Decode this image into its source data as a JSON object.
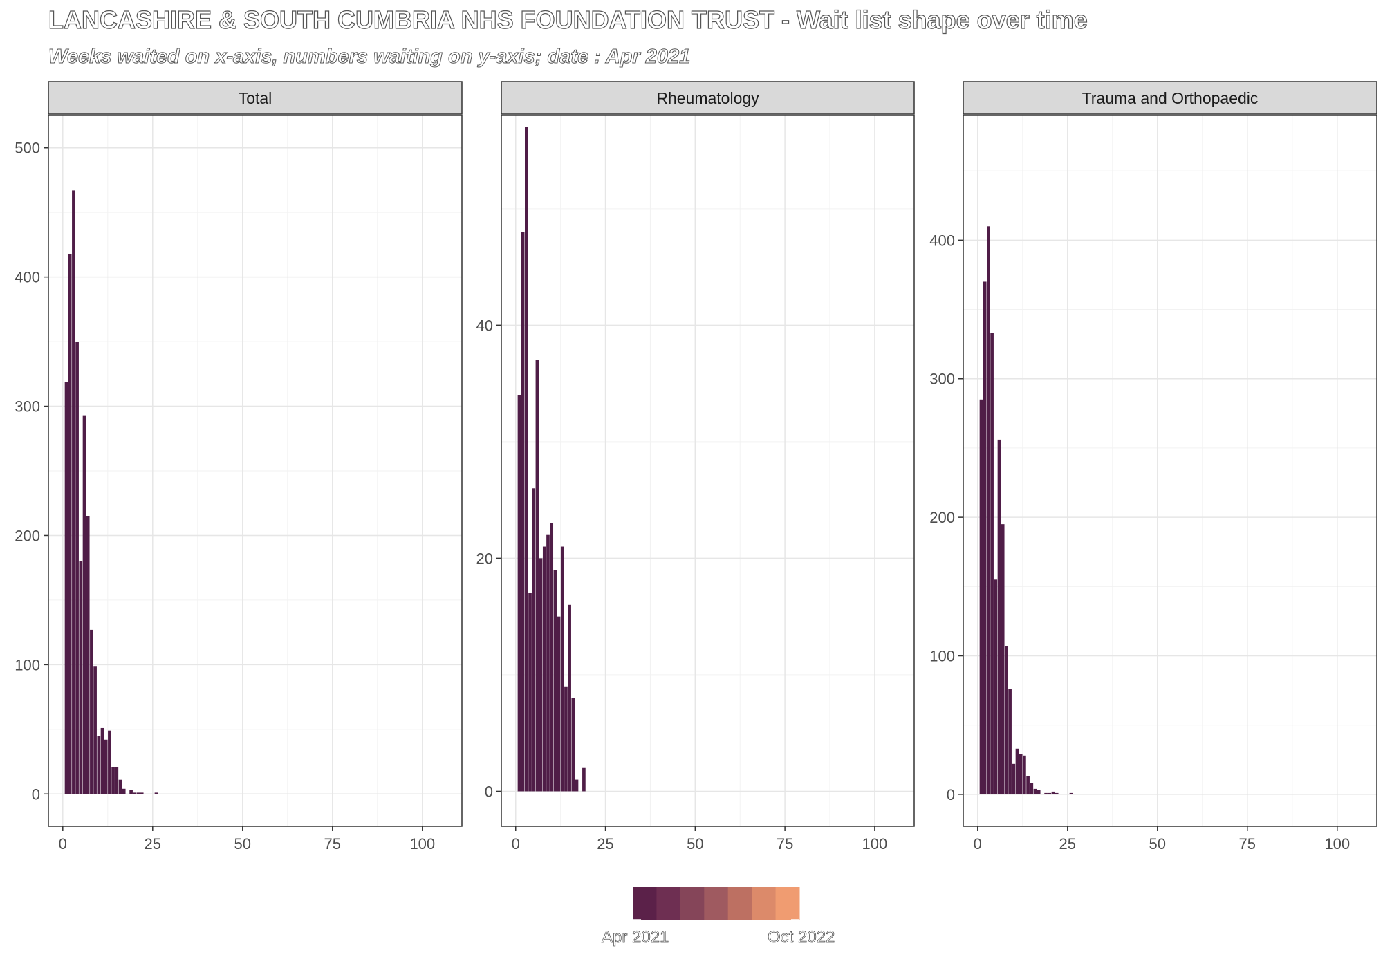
{
  "title": "LANCASHIRE & SOUTH CUMBRIA NHS FOUNDATION TRUST - Wait list shape over time",
  "subtitle": "Weeks waited on x-axis, numbers waiting on y-axis; date : Apr 2021",
  "legend": {
    "start_label": "Apr 2021",
    "end_label": "Oct 2022",
    "colors": [
      "#5b2149",
      "#6e2f52",
      "#854559",
      "#9f5a60",
      "#bd7062",
      "#dc8a6a",
      "#f09c71"
    ]
  },
  "bar_color": "#4f1d47",
  "chart_data": [
    {
      "type": "bar",
      "title": "Total",
      "xlabel": "",
      "ylabel": "",
      "xlim": [
        -4,
        111
      ],
      "ylim": [
        -25,
        525
      ],
      "xticks": [
        0,
        25,
        50,
        75,
        100
      ],
      "yticks": [
        0,
        100,
        200,
        300,
        400,
        500
      ],
      "x": [
        1,
        2,
        3,
        4,
        5,
        6,
        7,
        8,
        9,
        10,
        11,
        12,
        13,
        14,
        15,
        16,
        17,
        19,
        20,
        21,
        22,
        26
      ],
      "values": [
        319,
        418,
        467,
        350,
        180,
        293,
        215,
        127,
        99,
        45,
        51,
        42,
        49,
        21,
        21,
        11,
        4,
        3,
        1,
        1,
        1,
        1
      ]
    },
    {
      "type": "bar",
      "title": "Rheumatology",
      "xlabel": "",
      "ylabel": "",
      "xlim": [
        -4,
        111
      ],
      "ylim": [
        -3,
        58
      ],
      "xticks": [
        0,
        25,
        50,
        75,
        100
      ],
      "yticks": [
        0,
        20,
        40
      ],
      "x": [
        1,
        2,
        3,
        4,
        5,
        6,
        7,
        8,
        9,
        10,
        11,
        12,
        13,
        14,
        15,
        16,
        17,
        19
      ],
      "values": [
        34,
        48,
        57,
        17,
        26,
        37,
        20,
        21,
        22,
        23,
        19,
        15,
        21,
        9,
        16,
        8,
        1,
        2
      ]
    },
    {
      "type": "bar",
      "title": "Trauma and Orthopaedic",
      "xlabel": "",
      "ylabel": "",
      "xlim": [
        -4,
        111
      ],
      "ylim": [
        -23,
        490
      ],
      "xticks": [
        0,
        25,
        50,
        75,
        100
      ],
      "yticks": [
        0,
        100,
        200,
        300,
        400
      ],
      "x": [
        1,
        2,
        3,
        4,
        5,
        6,
        7,
        8,
        9,
        10,
        11,
        12,
        13,
        14,
        15,
        16,
        17,
        19,
        20,
        21,
        22,
        26
      ],
      "values": [
        285,
        370,
        410,
        333,
        155,
        256,
        195,
        107,
        76,
        22,
        33,
        29,
        28,
        13,
        8,
        4,
        3,
        1,
        1,
        2,
        1,
        1
      ]
    }
  ]
}
